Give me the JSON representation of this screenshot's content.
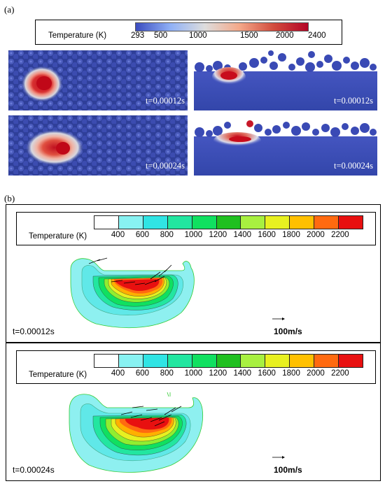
{
  "panel_a": {
    "label": "(a)",
    "legend": {
      "title": "Temperature (K)",
      "ticks": [
        "293",
        "500",
        "1000",
        "1500",
        "2000",
        "2400"
      ],
      "colormap": [
        "#3b4cc0",
        "#8fb0f6",
        "#dddddd",
        "#f4a98a",
        "#d24d3e",
        "#b40426"
      ]
    },
    "frames": [
      {
        "view": "top",
        "time": "t=0.00012s"
      },
      {
        "view": "side",
        "time": "t=0.00012s"
      },
      {
        "view": "top",
        "time": "t=0.00024s"
      },
      {
        "view": "side",
        "time": "t=0.00024s"
      }
    ]
  },
  "panel_b": {
    "label": "(b)",
    "legend": {
      "title": "Temperature (K)",
      "ticks": [
        "400",
        "600",
        "800",
        "1000",
        "1200",
        "1400",
        "1600",
        "1800",
        "2000",
        "2200"
      ],
      "colors": [
        "#ffffff",
        "#88f2f2",
        "#30e4e4",
        "#22e6a0",
        "#10e060",
        "#20c020",
        "#a8f040",
        "#e8f020",
        "#ffc000",
        "#ff6a10",
        "#e81010"
      ]
    },
    "frames": [
      {
        "time": "t=0.00012s",
        "scale_label": "100m/s"
      },
      {
        "time": "t=0.00024s",
        "scale_label": "100m/s"
      }
    ]
  }
}
